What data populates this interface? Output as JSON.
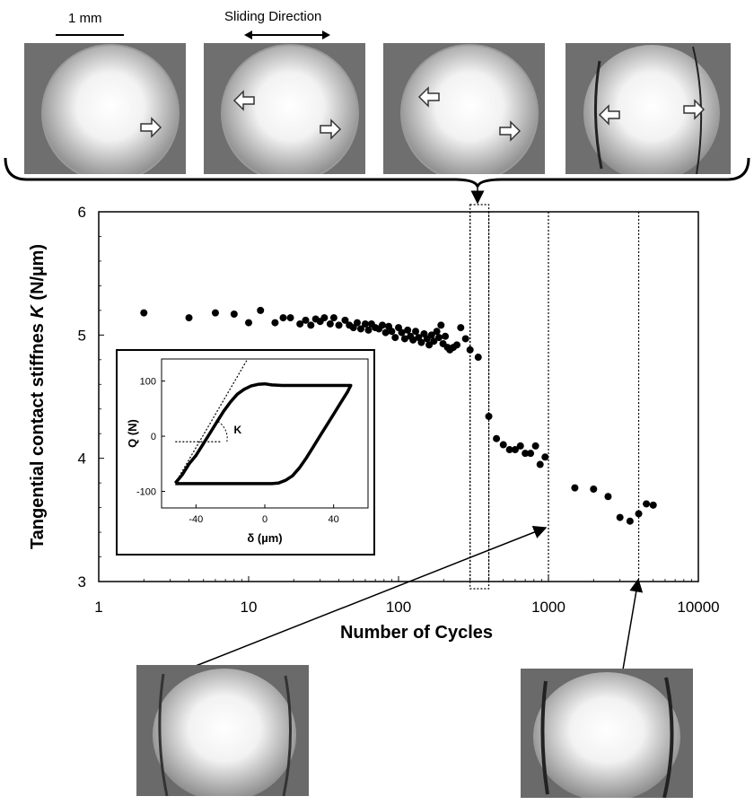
{
  "scale_bar_label": "1 mm",
  "sliding_direction_label": "Sliding Direction",
  "chart_data": [
    {
      "type": "scatter",
      "xlabel": "Number of  Cycles",
      "ylabel_prefix": "Tangential contact stiffnes ",
      "ylabel_symbol": "K",
      "ylabel_suffix": " (N/µm)",
      "x_scale": "log",
      "xlim": [
        1,
        10000
      ],
      "ylim": [
        3,
        6
      ],
      "x_ticks": [
        "1",
        "10",
        "100",
        "1000",
        "10000"
      ],
      "y_ticks": [
        "3",
        "4",
        "5",
        "6"
      ],
      "grid": false,
      "reference_lines_x": [
        300,
        400,
        1000,
        4000
      ],
      "series": [
        {
          "points": [
            [
              2,
              5.18
            ],
            [
              4,
              5.14
            ],
            [
              6,
              5.18
            ],
            [
              8,
              5.17
            ],
            [
              10,
              5.1
            ],
            [
              12,
              5.2
            ],
            [
              15,
              5.1
            ],
            [
              17,
              5.14
            ],
            [
              19,
              5.14
            ],
            [
              22,
              5.09
            ],
            [
              24,
              5.12
            ],
            [
              26,
              5.08
            ],
            [
              28,
              5.13
            ],
            [
              30,
              5.11
            ],
            [
              32,
              5.14
            ],
            [
              35,
              5.09
            ],
            [
              37,
              5.14
            ],
            [
              40,
              5.08
            ],
            [
              44,
              5.12
            ],
            [
              47,
              5.08
            ],
            [
              50,
              5.06
            ],
            [
              53,
              5.1
            ],
            [
              56,
              5.05
            ],
            [
              60,
              5.09
            ],
            [
              63,
              5.04
            ],
            [
              66,
              5.09
            ],
            [
              70,
              5.06
            ],
            [
              74,
              5.05
            ],
            [
              78,
              5.08
            ],
            [
              82,
              5.02
            ],
            [
              86,
              5.07
            ],
            [
              90,
              5.03
            ],
            [
              95,
              4.98
            ],
            [
              100,
              5.06
            ],
            [
              105,
              5.02
            ],
            [
              110,
              4.97
            ],
            [
              115,
              5.04
            ],
            [
              120,
              4.99
            ],
            [
              125,
              4.96
            ],
            [
              130,
              5.03
            ],
            [
              136,
              4.98
            ],
            [
              142,
              4.94
            ],
            [
              148,
              5.01
            ],
            [
              155,
              4.97
            ],
            [
              160,
              4.92
            ],
            [
              166,
              5.0
            ],
            [
              172,
              4.95
            ],
            [
              180,
              5.03
            ],
            [
              186,
              4.98
            ],
            [
              192,
              5.08
            ],
            [
              198,
              4.93
            ],
            [
              205,
              4.99
            ],
            [
              212,
              4.9
            ],
            [
              220,
              4.88
            ],
            [
              232,
              4.9
            ],
            [
              245,
              4.92
            ],
            [
              260,
              5.06
            ],
            [
              280,
              4.97
            ],
            [
              300,
              4.88
            ],
            [
              340,
              4.82
            ],
            [
              400,
              4.34
            ],
            [
              450,
              4.16
            ],
            [
              500,
              4.11
            ],
            [
              550,
              4.07
            ],
            [
              600,
              4.07
            ],
            [
              650,
              4.1
            ],
            [
              700,
              4.04
            ],
            [
              760,
              4.04
            ],
            [
              820,
              4.1
            ],
            [
              880,
              3.95
            ],
            [
              950,
              4.01
            ],
            [
              1500,
              3.76
            ],
            [
              2000,
              3.75
            ],
            [
              2500,
              3.69
            ],
            [
              3000,
              3.52
            ],
            [
              3500,
              3.49
            ],
            [
              4000,
              3.55
            ],
            [
              4500,
              3.63
            ],
            [
              5000,
              3.62
            ]
          ]
        }
      ]
    },
    {
      "type": "line",
      "xlabel": "δ (µm)",
      "ylabel": "Q (N)",
      "xlim": [
        -60,
        60
      ],
      "ylim": [
        -130,
        140
      ],
      "x_ticks": [
        "-40",
        "0",
        "40"
      ],
      "y_ticks": [
        "100",
        "0",
        "-100"
      ],
      "annotation": "K",
      "series": [
        {
          "points": [
            [
              -52,
              -85
            ],
            [
              -48,
              -70
            ],
            [
              -44,
              -50
            ],
            [
              -40,
              -35
            ],
            [
              -36,
              -15
            ],
            [
              -32,
              5
            ],
            [
              -28,
              25
            ],
            [
              -24,
              45
            ],
            [
              -20,
              62
            ],
            [
              -16,
              76
            ],
            [
              -12,
              85
            ],
            [
              -8,
              91
            ],
            [
              -4,
              94
            ],
            [
              0,
              95
            ],
            [
              4,
              93
            ],
            [
              10,
              92
            ],
            [
              20,
              92
            ],
            [
              30,
              92
            ],
            [
              40,
              92
            ],
            [
              50,
              92
            ],
            [
              48,
              80
            ],
            [
              44,
              60
            ],
            [
              40,
              40
            ],
            [
              36,
              20
            ],
            [
              32,
              0
            ],
            [
              28,
              -20
            ],
            [
              24,
              -40
            ],
            [
              20,
              -58
            ],
            [
              16,
              -72
            ],
            [
              12,
              -80
            ],
            [
              8,
              -85
            ],
            [
              4,
              -86
            ],
            [
              -10,
              -86
            ],
            [
              -20,
              -86
            ],
            [
              -30,
              -86
            ],
            [
              -40,
              -86
            ],
            [
              -52,
              -86
            ]
          ]
        }
      ]
    }
  ]
}
